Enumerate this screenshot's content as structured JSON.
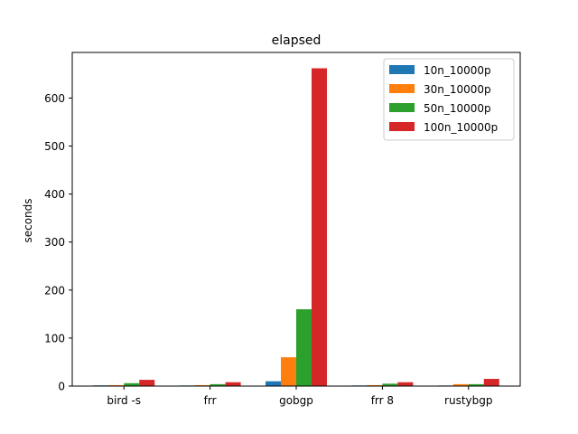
{
  "chart_data": {
    "type": "bar",
    "title": "elapsed",
    "xlabel": "",
    "ylabel": "seconds",
    "categories": [
      "bird -s",
      "frr",
      "gobgp",
      "frr 8",
      "rustybgp"
    ],
    "ylim": [
      0,
      695
    ],
    "yticks": [
      0,
      100,
      200,
      300,
      400,
      500,
      600
    ],
    "grid": false,
    "legend_position": "top-right",
    "series": [
      {
        "name": "10n_10000p",
        "color": "#1f77b4",
        "values": [
          1.5,
          1.2,
          10,
          1.3,
          1.2
        ]
      },
      {
        "name": "30n_10000p",
        "color": "#ff7f0e",
        "values": [
          2,
          2,
          60,
          2,
          4
        ]
      },
      {
        "name": "50n_10000p",
        "color": "#2ca02c",
        "values": [
          6,
          4,
          160,
          5,
          4
        ]
      },
      {
        "name": "100n_10000p",
        "color": "#d62728",
        "values": [
          13,
          8,
          662,
          8,
          15
        ]
      }
    ]
  }
}
